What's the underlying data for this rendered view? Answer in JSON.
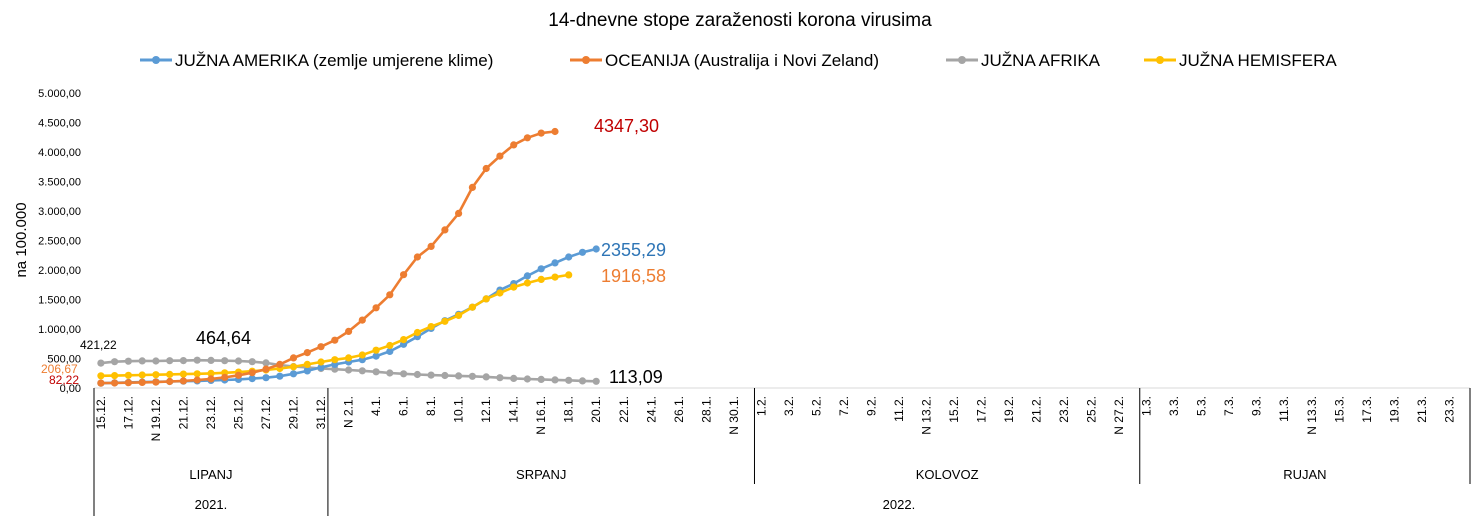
{
  "chart_data": {
    "type": "line",
    "title": "14-dnevne stope zaraženosti korona virusima",
    "ylabel": "na 100.000",
    "ylim": [
      0,
      5000
    ],
    "yticks": [
      "0,00",
      "500,00",
      "1.000,00",
      "1.500,00",
      "2.000,00",
      "2.500,00",
      "3.000,00",
      "3.500,00",
      "4.000,00",
      "4.500,00",
      "5.000,00"
    ],
    "grid": false,
    "legend_position": "top",
    "x_labels": [
      "15.12.",
      "17.12.",
      "N 19.12.",
      "21.12.",
      "23.12.",
      "25.12.",
      "27.12.",
      "29.12.",
      "31.12.",
      "N  2.1.",
      "4.1.",
      "6.1.",
      "8.1.",
      "10.1.",
      "12.1.",
      "14.1.",
      "N 16.1.",
      "18.1.",
      "20.1.",
      "22.1.",
      "24.1.",
      "26.1.",
      "28.1.",
      "N 30.1.",
      "1.2.",
      "3.2.",
      "5.2.",
      "7.2.",
      "9.2.",
      "11.2.",
      "N 13.2.",
      "15.2.",
      "17.2.",
      "19.2.",
      "21.2.",
      "23.2.",
      "25.2.",
      "N 27.2.",
      "1.3.",
      "3.3.",
      "5.3.",
      "7.3.",
      "9.3.",
      "11.3.",
      "N 13.3.",
      "15.3.",
      "17.3.",
      "19.3.",
      "21.3.",
      "23.3."
    ],
    "x_label_step": 2,
    "n_points": 100,
    "month_groups": [
      {
        "label": "LIPANJ",
        "start": 0,
        "end": 17
      },
      {
        "label": "SRPANJ",
        "start": 17,
        "end": 48
      },
      {
        "label": "KOLOVOZ",
        "start": 48,
        "end": 76
      },
      {
        "label": "RUJAN",
        "start": 76,
        "end": 100
      }
    ],
    "year_groups": [
      {
        "label": "2021.",
        "start": 0,
        "end": 17
      },
      {
        "label": "2022.",
        "start": 17,
        "end": 100
      }
    ],
    "series": [
      {
        "name": "JUŽNA AMERIKA (zemlje umjerene klime)",
        "color": "#5B9BD5",
        "values": [
          82,
          88,
          95,
          100,
          105,
          110,
          115,
          120,
          128,
          135,
          145,
          160,
          175,
          200,
          240,
          290,
          350,
          400,
          440,
          480,
          540,
          620,
          740,
          870,
          1010,
          1140,
          1250,
          1370,
          1510,
          1660,
          1770,
          1900,
          2020,
          2120,
          2220,
          2300,
          2355.29
        ]
      },
      {
        "name": "OCEANIJA (Australija i Novi Zeland)",
        "color": "#ED7D31",
        "values": [
          82.22,
          85,
          90,
          95,
          100,
          110,
          120,
          135,
          155,
          180,
          215,
          260,
          320,
          400,
          510,
          600,
          700,
          810,
          960,
          1150,
          1360,
          1580,
          1920,
          2220,
          2400,
          2680,
          2960,
          3400,
          3720,
          3930,
          4120,
          4240,
          4320,
          4347.3
        ]
      },
      {
        "name": "JUŽNA AFRIKA",
        "color": "#A5A5A5",
        "values": [
          421.22,
          445,
          455,
          460,
          458,
          462,
          464.64,
          472,
          468,
          462,
          458,
          445,
          425,
          390,
          365,
          350,
          330,
          318,
          305,
          292,
          275,
          255,
          240,
          228,
          218,
          212,
          205,
          198,
          188,
          175,
          162,
          152,
          145,
          138,
          130,
          120,
          113.09
        ]
      },
      {
        "name": "JUŽNA HEMISFERA",
        "color": "#FFC000",
        "values": [
          206.67,
          210,
          215,
          220,
          225,
          230,
          235,
          240,
          248,
          258,
          270,
          285,
          305,
          330,
          360,
          400,
          440,
          480,
          510,
          560,
          640,
          720,
          820,
          940,
          1040,
          1130,
          1230,
          1370,
          1510,
          1610,
          1710,
          1780,
          1840,
          1880,
          1916.58
        ]
      }
    ],
    "annotations": [
      {
        "text": "421,22",
        "color": "#000000"
      },
      {
        "text": "464,64",
        "color": "#000000"
      },
      {
        "text": "206,67",
        "color": "#ED7D31"
      },
      {
        "text": "82,22",
        "color": "#C00000"
      },
      {
        "text": "4347,30",
        "color": "#C00000"
      },
      {
        "text": "2355,29",
        "color": "#2E75B6"
      },
      {
        "text": "1916,58",
        "color": "#ED7D31"
      },
      {
        "text": "113,09",
        "color": "#000000"
      }
    ]
  }
}
